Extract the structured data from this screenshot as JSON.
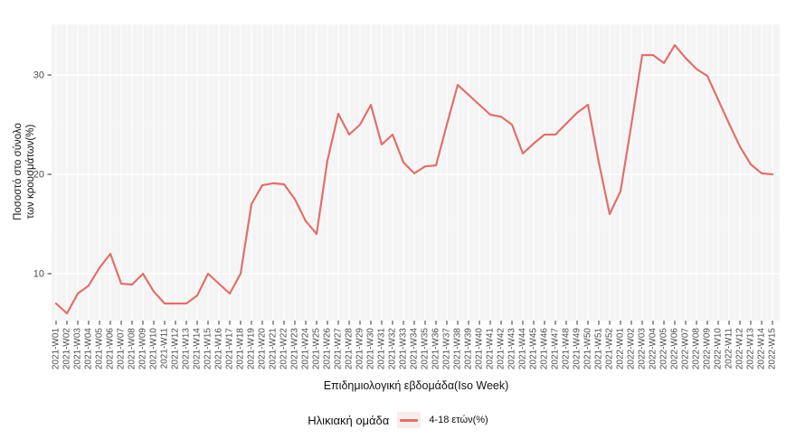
{
  "colors": {
    "line": "#e0706c",
    "panel_bg": "#f4f4f4",
    "grid": "#ffffff",
    "tick_mark": "#333333",
    "tick_label": "#4d4d4d",
    "axis_title": "#111111",
    "legend_key_bg": "#f9ecec"
  },
  "y_axis": {
    "title_line1": "Ποσοστό στο σύνολο",
    "title_line2": "των κρουσμάτων(%)",
    "ticks": [
      10,
      20,
      30
    ]
  },
  "x_axis": {
    "title": "Επιδημιολογική εβδομάδα(Iso Week)"
  },
  "legend": {
    "title": "Ηλικιακή ομάδα",
    "series_label": "4-18 ετών(%)"
  },
  "chart_data": {
    "type": "line",
    "title": "",
    "xlabel": "Επιδημιολογική εβδομάδα(Iso Week)",
    "ylabel": "Ποσοστό στο σύνολο των κρουσμάτων(%)",
    "ylim": [
      5,
      35
    ],
    "grid": true,
    "legend_position": "bottom",
    "categories": [
      "2021-W01",
      "2021-W02",
      "2021-W03",
      "2021-W04",
      "2021-W05",
      "2021-W06",
      "2021-W07",
      "2021-W08",
      "2021-W09",
      "2021-W10",
      "2021-W11",
      "2021-W12",
      "2021-W13",
      "2021-W14",
      "2021-W15",
      "2021-W16",
      "2021-W17",
      "2021-W18",
      "2021-W19",
      "2021-W20",
      "2021-W21",
      "2021-W22",
      "2021-W23",
      "2021-W24",
      "2021-W25",
      "2021-W26",
      "2021-W27",
      "2021-W28",
      "2021-W29",
      "2021-W30",
      "2021-W31",
      "2021-W32",
      "2021-W33",
      "2021-W34",
      "2021-W35",
      "2021-W36",
      "2021-W37",
      "2021-W38",
      "2021-W39",
      "2021-W40",
      "2021-W41",
      "2021-W42",
      "2021-W43",
      "2021-W44",
      "2021-W45",
      "2021-W46",
      "2021-W47",
      "2021-W48",
      "2021-W49",
      "2021-W50",
      "2021-W51",
      "2021-W52",
      "2022-W01",
      "2022-W02",
      "2022-W03",
      "2022-W04",
      "2022-W05",
      "2022-W06",
      "2022-W07",
      "2022-W08",
      "2022-W09",
      "2022-W10",
      "2022-W11",
      "2022-W12",
      "2022-W13",
      "2022-W14",
      "2022-W15"
    ],
    "series": [
      {
        "name": "4-18 ετών(%)",
        "values": [
          7,
          6,
          8,
          8.8,
          10.6,
          12,
          9,
          8.9,
          10,
          8.2,
          7,
          7,
          7,
          7.8,
          10,
          9,
          8,
          10,
          17,
          18.9,
          19.1,
          19,
          17.5,
          15.3,
          14,
          21.4,
          26.1,
          24,
          25,
          27,
          23,
          24,
          21.2,
          20.1,
          20.8,
          20.9,
          25,
          29,
          28,
          27,
          26,
          25.8,
          25,
          22.1,
          23.1,
          24,
          24,
          25.1,
          26.2,
          27,
          21.2,
          16,
          18.3,
          25,
          32,
          32,
          31.2,
          33,
          31.7,
          30.6,
          29.9,
          27.5,
          25.1,
          22.8,
          21,
          20.1,
          20
        ]
      }
    ]
  }
}
